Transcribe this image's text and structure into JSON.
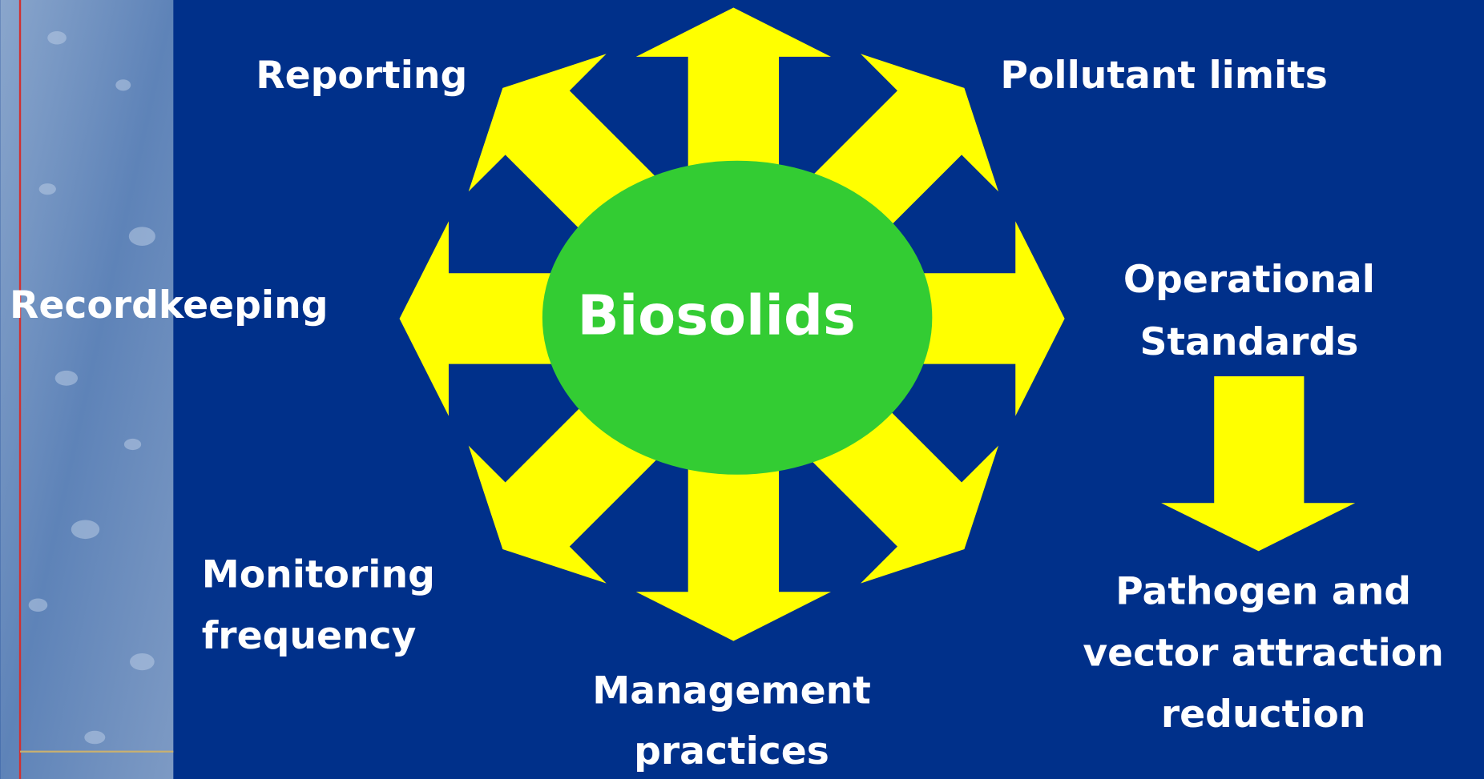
{
  "center": {
    "label": "Biosolids"
  },
  "nodes": [
    {
      "lines": [
        "Reporting"
      ]
    },
    {
      "lines": [
        "Pollutant limits"
      ]
    },
    {
      "lines": [
        "Recordkeeping"
      ]
    },
    {
      "lines": [
        "Operational",
        "Standards"
      ]
    },
    {
      "lines": [
        "Monitoring",
        "frequency"
      ]
    },
    {
      "lines": [
        "Management",
        "practices"
      ]
    },
    {
      "lines": [
        "Pathogen and",
        "vector attraction",
        "reduction"
      ]
    }
  ]
}
